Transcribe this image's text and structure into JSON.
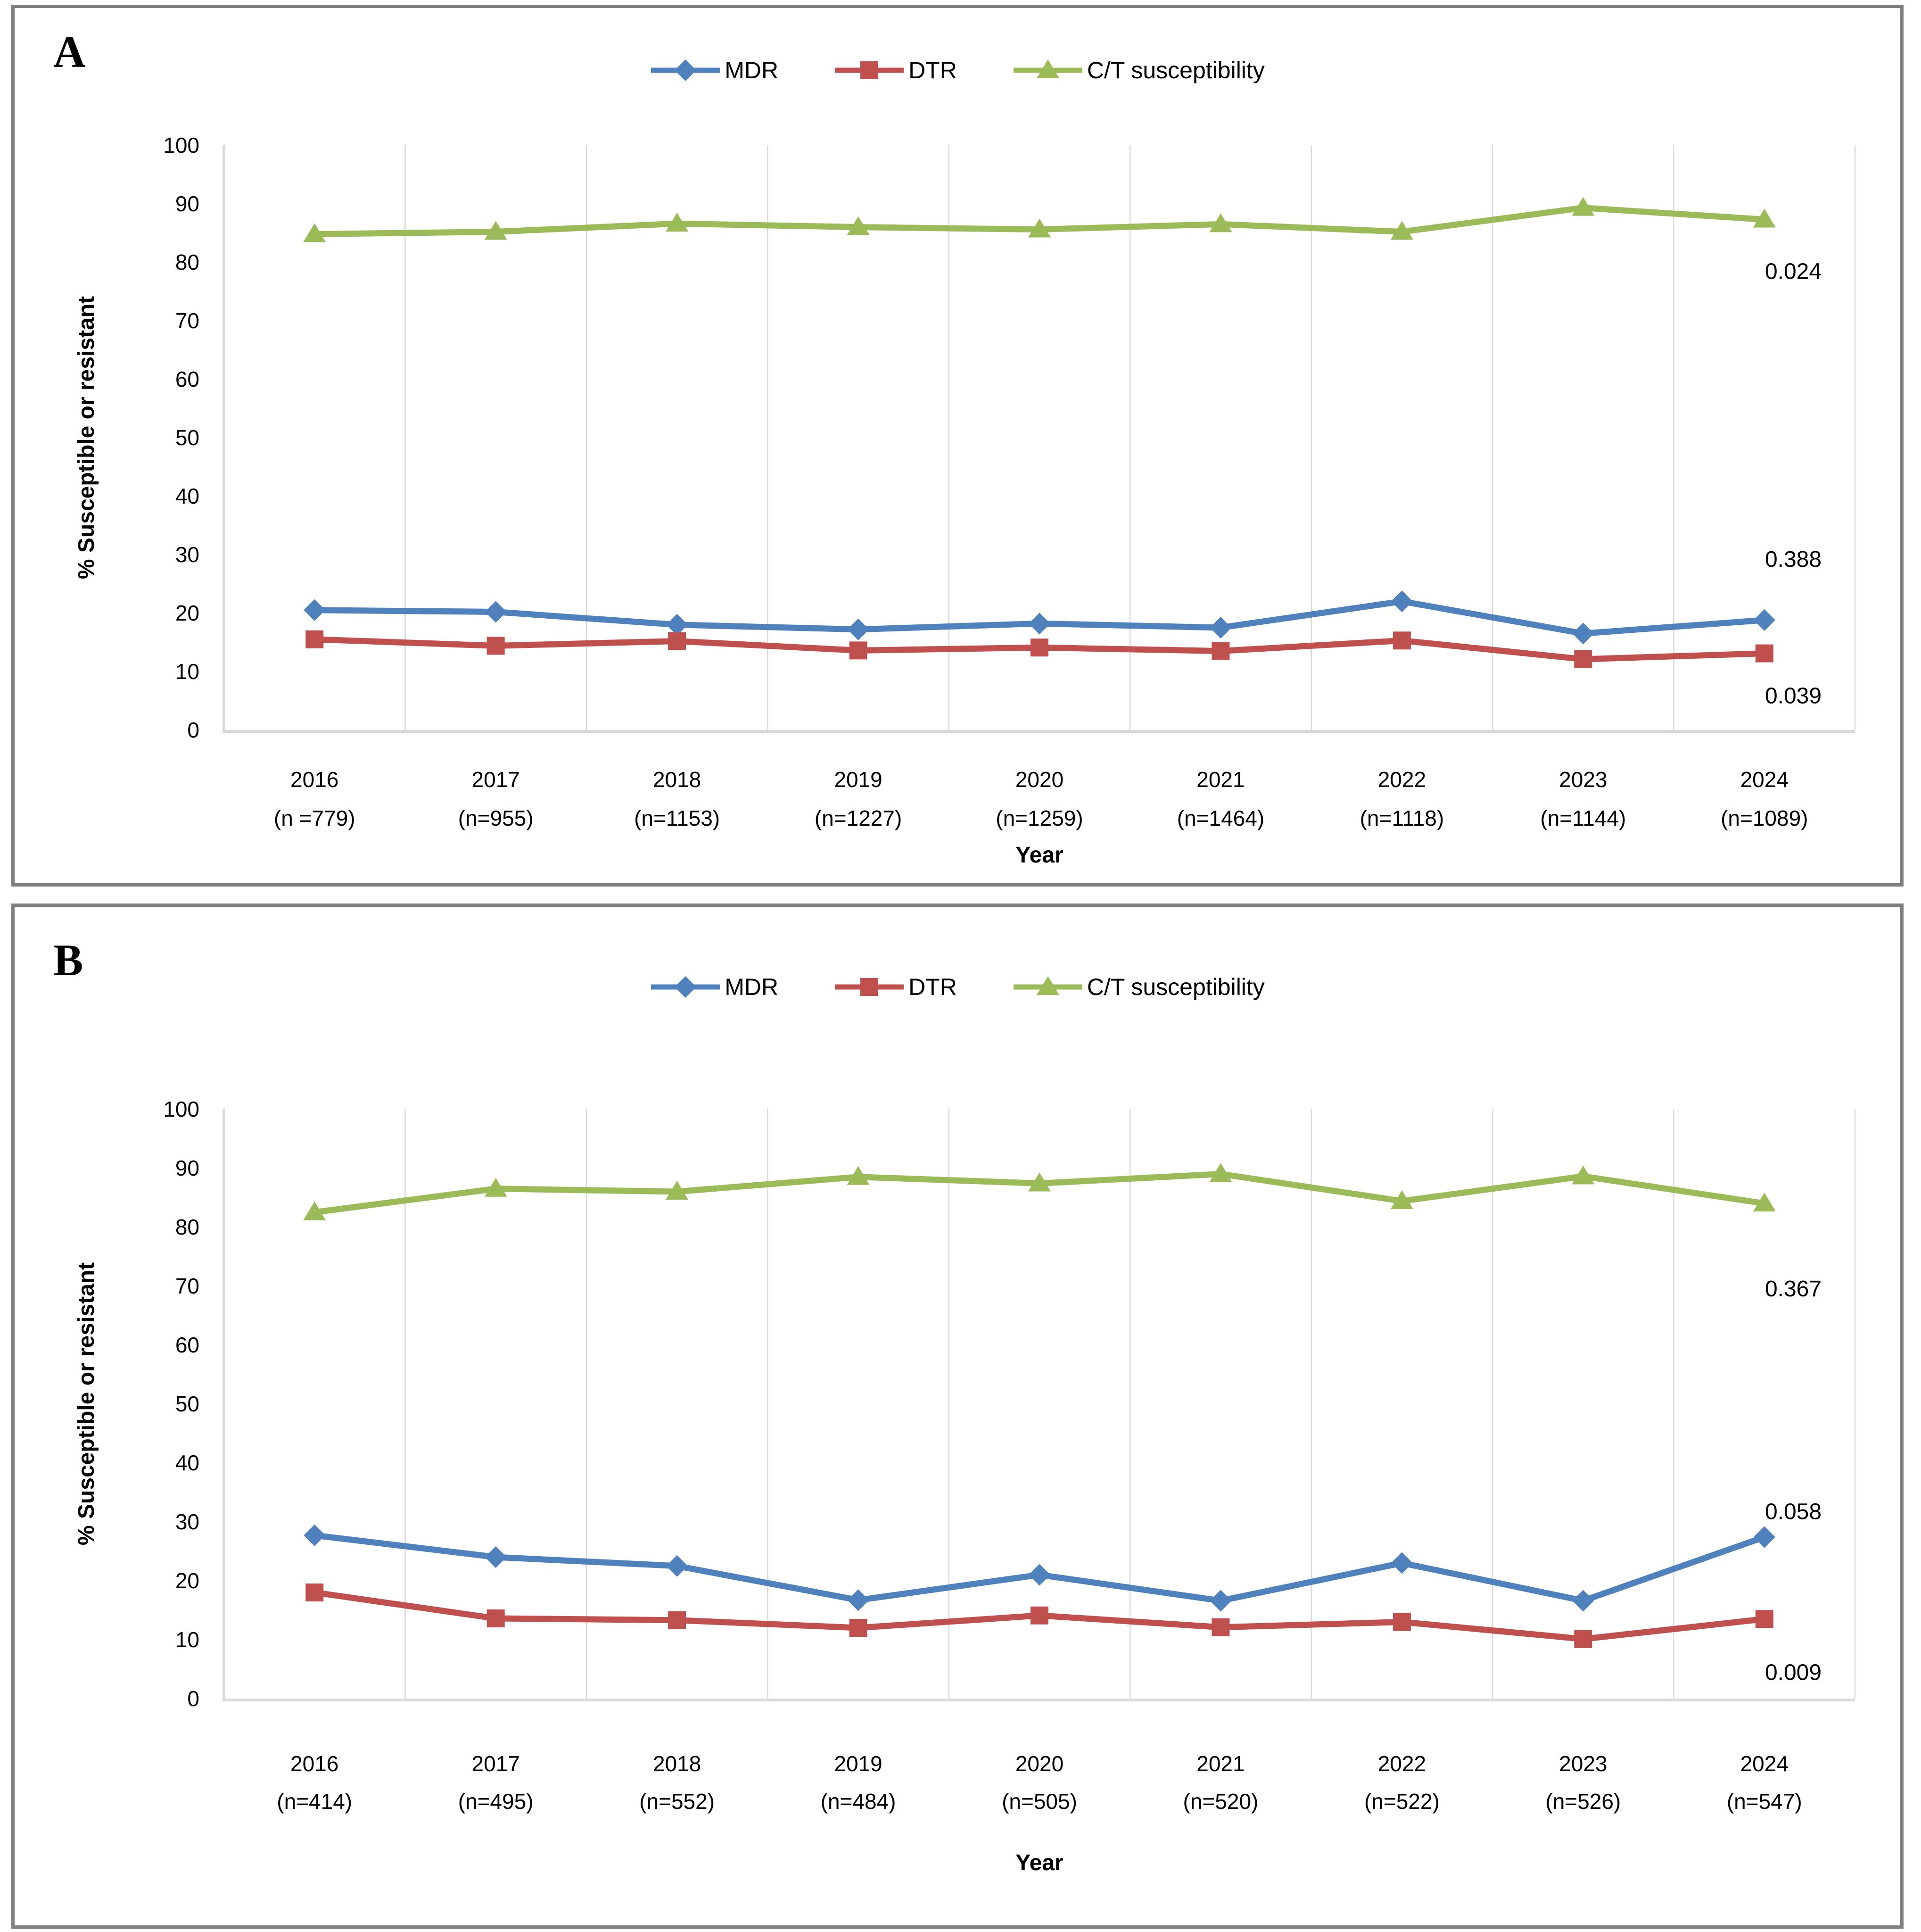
{
  "chart_data": [
    {
      "panel_label": "A",
      "type": "line",
      "xlabel": "Year",
      "ylabel": "% Susceptible or resistant",
      "ylim": [
        0,
        100
      ],
      "yticks": [
        0,
        10,
        20,
        30,
        40,
        50,
        60,
        70,
        80,
        90,
        100
      ],
      "grid": "vertical",
      "legend_position": "top-center",
      "x_categories": [
        "2016",
        "2017",
        "2018",
        "2019",
        "2020",
        "2021",
        "2022",
        "2023",
        "2024"
      ],
      "x_n_labels": [
        "(n =779)",
        "(n=955)",
        "(n=1153)",
        "(n=1227)",
        "(n=1259)",
        "(n=1464)",
        "(n=1118)",
        "(n=1144)",
        "(n=1089)"
      ],
      "series": [
        {
          "name": "MDR",
          "marker": "diamond",
          "color": "#4F81BD",
          "values": [
            20.5,
            20.2,
            18.0,
            17.2,
            18.2,
            17.5,
            22.0,
            16.5,
            18.8
          ],
          "trend_p_label": "0.388"
        },
        {
          "name": "DTR",
          "marker": "square",
          "color": "#C0504D",
          "values": [
            15.5,
            14.4,
            15.2,
            13.6,
            14.1,
            13.5,
            15.3,
            12.1,
            13.1
          ],
          "trend_p_label": "0.039"
        },
        {
          "name": "C/T susceptibility",
          "marker": "triangle",
          "color": "#9BBB59",
          "values": [
            84.8,
            85.2,
            86.6,
            86.0,
            85.6,
            86.5,
            85.2,
            89.3,
            87.3
          ],
          "trend_p_label": "0.024"
        }
      ]
    },
    {
      "panel_label": "B",
      "type": "line",
      "xlabel": "Year",
      "ylabel": "% Susceptible or resistant",
      "ylim": [
        0,
        100
      ],
      "yticks": [
        0,
        10,
        20,
        30,
        40,
        50,
        60,
        70,
        80,
        90,
        100
      ],
      "grid": "vertical",
      "legend_position": "top-center",
      "x_categories": [
        "2016",
        "2017",
        "2018",
        "2019",
        "2020",
        "2021",
        "2022",
        "2023",
        "2024"
      ],
      "x_n_labels": [
        "(n=414)",
        "(n=495)",
        "(n=552)",
        "(n=484)",
        "(n=505)",
        "(n=520)",
        "(n=522)",
        "(n=526)",
        "(n=547)"
      ],
      "series": [
        {
          "name": "MDR",
          "marker": "diamond",
          "color": "#4F81BD",
          "values": [
            27.7,
            24.0,
            22.5,
            16.7,
            21.0,
            16.6,
            23.0,
            16.6,
            27.4
          ],
          "trend_p_label": "0.058"
        },
        {
          "name": "DTR",
          "marker": "square",
          "color": "#C0504D",
          "values": [
            18.0,
            13.6,
            13.3,
            12.0,
            14.1,
            12.1,
            13.0,
            10.1,
            13.5
          ],
          "trend_p_label": "0.009"
        },
        {
          "name": "C/T susceptibility",
          "marker": "triangle",
          "color": "#9BBB59",
          "values": [
            82.5,
            86.5,
            86.0,
            88.5,
            87.4,
            89.0,
            84.4,
            88.6,
            84.0
          ],
          "trend_p_label": "0.367"
        }
      ]
    }
  ],
  "colors": {
    "mdr": "#4F81BD",
    "dtr": "#C0504D",
    "ct": "#9BBB59",
    "gridline": "#D9D9D9",
    "axis": "#D9D9D9",
    "panel_border": "#7F7F7F"
  }
}
